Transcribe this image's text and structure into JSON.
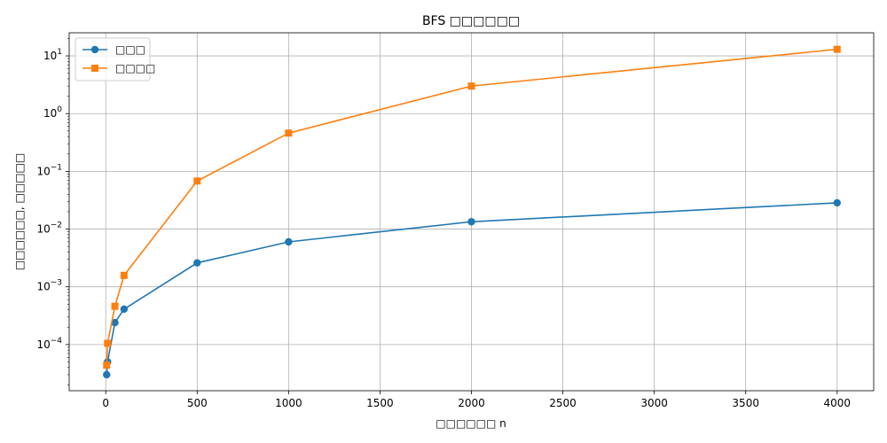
{
  "chart_data": {
    "type": "line",
    "title": "BFS □□□□□□",
    "xlabel": "□□□□□□ n",
    "ylabel": "□□□□□□, □□□□□",
    "xlim": [
      -200,
      4200
    ],
    "xticks": [
      0,
      500,
      1000,
      1500,
      2000,
      2500,
      3000,
      3500,
      4000
    ],
    "yscale": "log",
    "ylim_log10": [
      -4.8,
      1.4
    ],
    "yticks_exp": [
      -4,
      -3,
      -2,
      -1,
      0,
      1
    ],
    "grid": true,
    "legend": "top-left",
    "series": [
      {
        "name": "□□□",
        "color": "#1f77b4",
        "marker": "circle",
        "x": [
          5,
          10,
          50,
          100,
          500,
          1000,
          2000,
          4000
        ],
        "y": [
          3e-05,
          5e-05,
          0.00024,
          0.00041,
          0.0026,
          0.006,
          0.0134,
          0.0285
        ]
      },
      {
        "name": "□□□□",
        "color": "#ff7f0e",
        "marker": "square",
        "x": [
          5,
          10,
          50,
          100,
          500,
          1000,
          2000,
          4000
        ],
        "y": [
          4.4e-05,
          0.000105,
          0.00046,
          0.00158,
          0.068,
          0.46,
          3.0,
          13.0
        ]
      }
    ]
  }
}
